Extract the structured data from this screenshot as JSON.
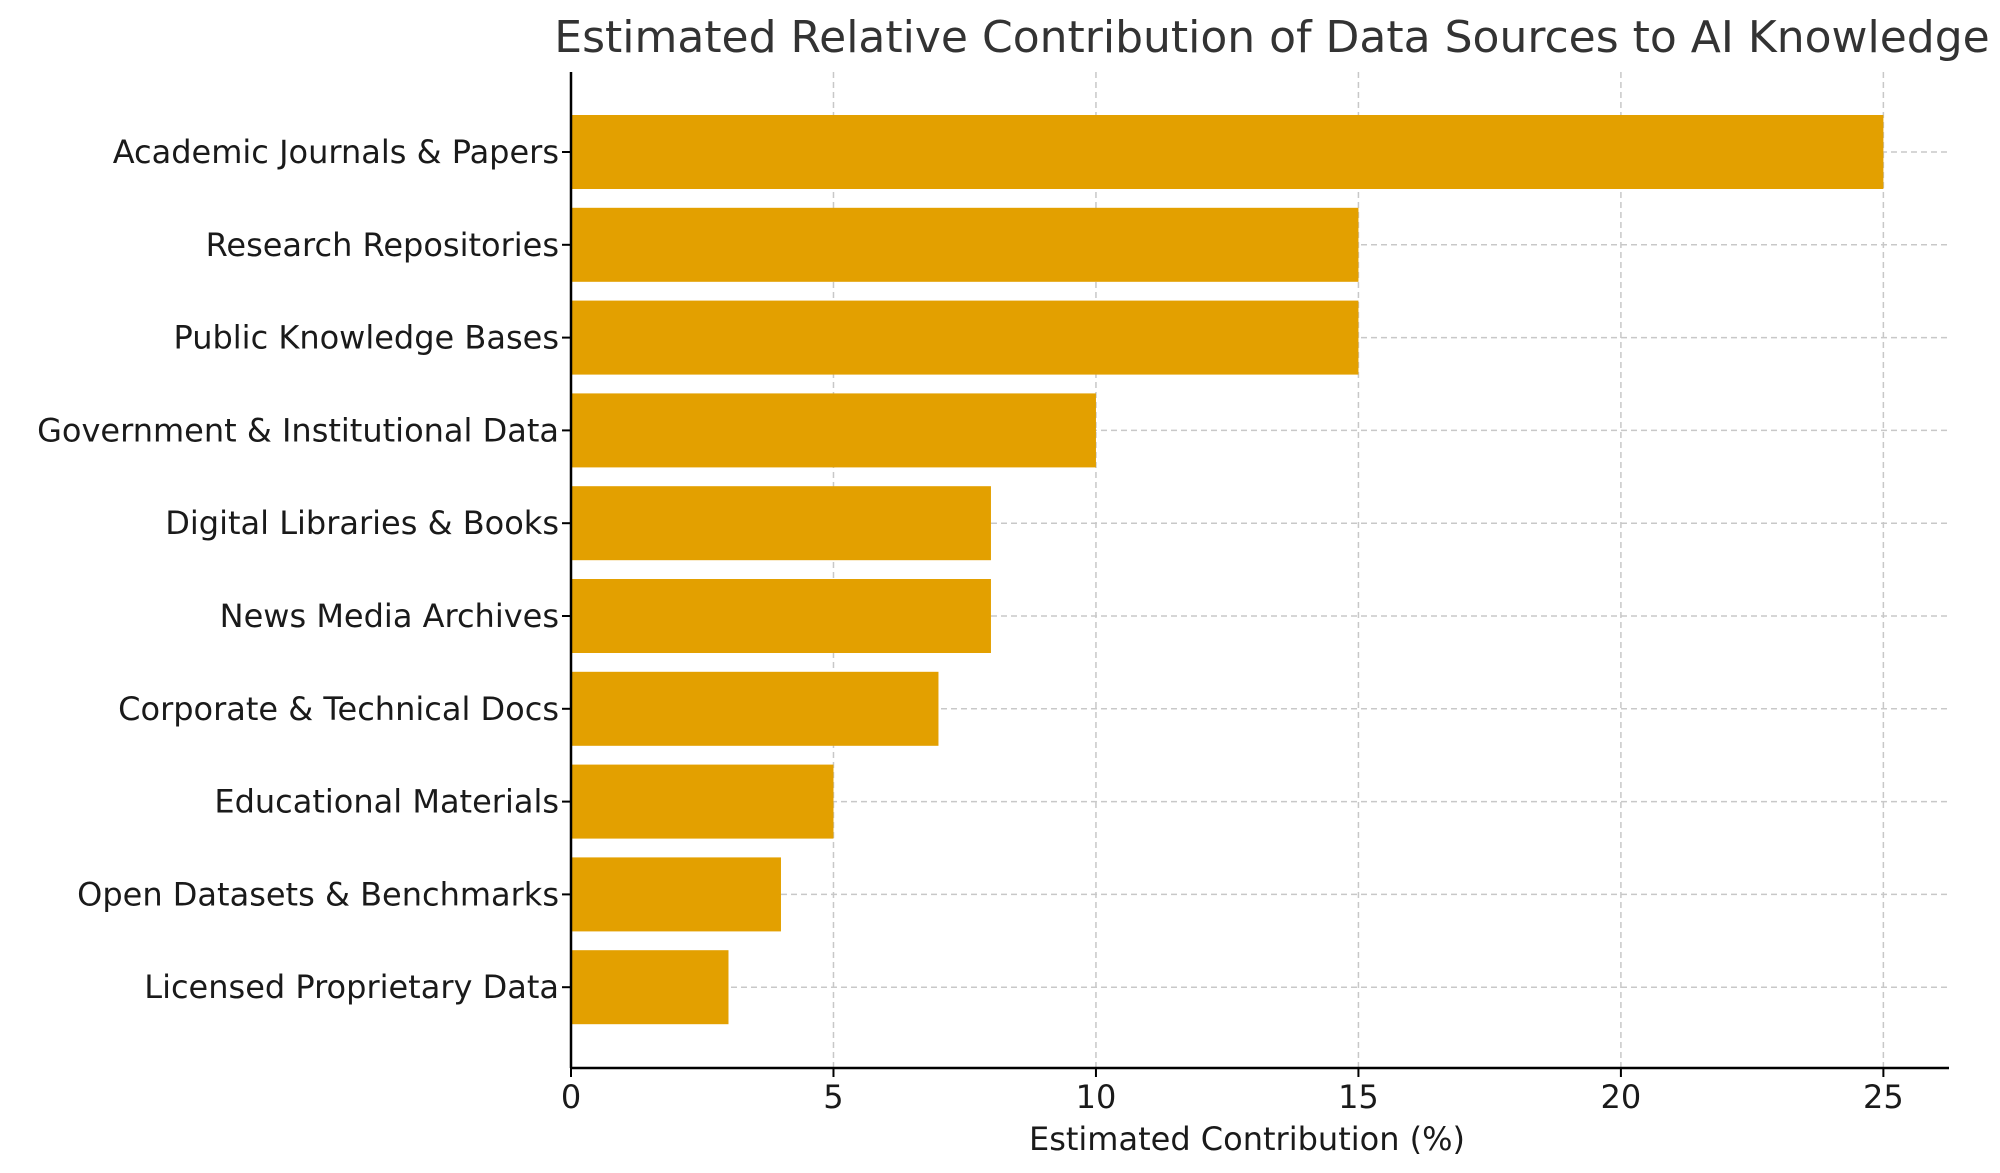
{
  "chart_data": {
    "type": "bar",
    "orientation": "horizontal",
    "title": "Estimated Relative Contribution of Data Sources to AI Knowledge",
    "xlabel": "Estimated Contribution (%)",
    "ylabel": "",
    "categories": [
      "Academic Journals & Papers",
      "Research Repositories",
      "Public Knowledge Bases",
      "Government & Institutional Data",
      "Digital Libraries & Books",
      "News Media Archives",
      "Corporate & Technical Docs",
      "Educational Materials",
      "Open Datasets & Benchmarks",
      "Licensed Proprietary Data"
    ],
    "values": [
      25,
      15,
      15,
      10,
      8,
      8,
      7,
      5,
      4,
      3
    ],
    "xlim": [
      0,
      26.25
    ],
    "xticks": [
      0,
      5,
      10,
      15,
      20,
      25
    ],
    "grid": true,
    "bar_color": "#E3A000"
  }
}
